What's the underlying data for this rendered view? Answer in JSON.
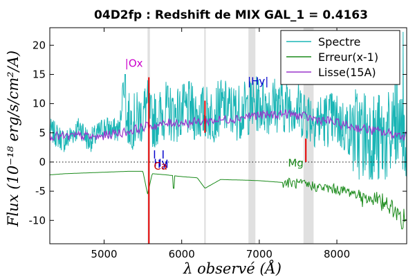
{
  "chart_data": {
    "type": "line",
    "title": "04D2fp : Redshift de MIX GAL_1 = 0.4163",
    "xlabel": "λ observé (Å)",
    "ylabel": "Flux (10⁻¹⁸ erg/s/cm²/A)",
    "xlim": [
      4300,
      8900
    ],
    "ylim": [
      -14,
      23
    ],
    "xticks": [
      "5000",
      "6000",
      "7000",
      "8000"
    ],
    "xtick_values": [
      5000,
      6000,
      7000,
      8000
    ],
    "yticks": [
      "-10",
      "-5",
      "0",
      "5",
      "10",
      "15",
      "20"
    ],
    "ytick_values": [
      -10,
      -5,
      0,
      5,
      10,
      15,
      20
    ],
    "legend_position": "top-right",
    "colors": {
      "spectre": "#1ab5b5",
      "erreur": "#1a8a1a",
      "lisse": "#9a33cc",
      "sky": "#e60000",
      "bands": "#e0e0e0",
      "label_o": "#cc00cc",
      "label_blue": "#0000cc",
      "label_green": "#1a8a1a",
      "label_red": "#cc0000"
    },
    "series": [
      {
        "name": "Spectre",
        "x": [
          4300,
          4400,
          4500,
          4600,
          4700,
          4800,
          4900,
          5000,
          5100,
          5200,
          5250,
          5270,
          5300,
          5400,
          5500,
          5550,
          5600,
          5700,
          5800,
          5900,
          6000,
          6100,
          6200,
          6300,
          6400,
          6500,
          6600,
          6700,
          6800,
          6900,
          7000,
          7100,
          7200,
          7300,
          7400,
          7500,
          7600,
          7700,
          7800,
          7900,
          8000,
          8100,
          8200,
          8300,
          8400,
          8500,
          8600,
          8700,
          8800,
          8900
        ],
        "values": [
          5.5,
          4.5,
          3.5,
          5,
          6,
          3.5,
          4.5,
          6,
          5.5,
          5.5,
          14,
          6,
          7,
          7,
          8,
          10,
          7,
          7.5,
          9,
          8,
          8.5,
          9,
          8,
          8.5,
          8,
          9.5,
          9,
          8.5,
          9,
          9.5,
          10,
          9.5,
          10,
          9.5,
          10,
          9,
          8.5,
          7.5,
          7,
          7.5,
          7,
          6,
          5.5,
          4.5,
          5,
          3.5,
          4,
          3.5,
          4,
          5
        ],
        "range": [
          -3,
          23
        ]
      },
      {
        "name": "Erreur(x-1)",
        "x": [
          4300,
          4500,
          4700,
          4900,
          5100,
          5300,
          5500,
          5560,
          5620,
          5800,
          6000,
          6200,
          6300,
          6500,
          6800,
          7000,
          7200,
          7400,
          7600,
          7800,
          8000,
          8200,
          8400,
          8600,
          8750,
          8900
        ],
        "values": [
          -2.2,
          -2.0,
          -1.9,
          -1.8,
          -1.7,
          -1.6,
          -1.6,
          -5.5,
          -2.0,
          -2.2,
          -2.5,
          -2.7,
          -4.5,
          -3.0,
          -3.1,
          -3.2,
          -3.4,
          -3.6,
          -3.9,
          -4.4,
          -4.7,
          -5.2,
          -6.2,
          -7.0,
          -8.5,
          -10.5
        ]
      },
      {
        "name": "Lisse(15A)",
        "x": [
          4300,
          4500,
          4700,
          4900,
          5100,
          5300,
          5500,
          5700,
          5900,
          6100,
          6300,
          6500,
          6700,
          6900,
          7100,
          7300,
          7500,
          7700,
          7900,
          8100,
          8300,
          8500,
          8700,
          8900
        ],
        "values": [
          4.5,
          4.3,
          4.5,
          4.2,
          4.8,
          5.2,
          6.0,
          6.3,
          6.8,
          6.7,
          7.0,
          7.2,
          7.5,
          8.0,
          8.0,
          8.3,
          8.0,
          7.4,
          7.0,
          6.3,
          5.8,
          5.3,
          4.8,
          4.5
        ]
      }
    ],
    "legend": [
      "Spectre",
      "Erreur(x-1)",
      "Lisse(15A)"
    ],
    "zero_line": 0,
    "sky_lines": [
      5577,
      6300,
      7600
    ],
    "grey_bands": [
      [
        5560,
        5590
      ],
      [
        6290,
        6310
      ],
      [
        6860,
        6950
      ],
      [
        7570,
        7700
      ]
    ],
    "line_labels": [
      {
        "text": "|Ox",
        "x": 5270,
        "y": 16.3,
        "color_key": "label_o"
      },
      {
        "text": "|Hy|",
        "x": 6850,
        "y": 13.2,
        "color_key": "label_blue"
      },
      {
        "text": "Hy",
        "x": 5640,
        "y": -0.8,
        "color_key": "label_blue"
      },
      {
        "text": "Ca",
        "x": 5640,
        "y": -1.3,
        "color_key": "label_red"
      },
      {
        "text": "Mg",
        "x": 7370,
        "y": -0.8,
        "color_key": "label_green"
      }
    ],
    "short_ticks": [
      5650,
      5710,
      5760,
      5810
    ],
    "grid": false
  }
}
